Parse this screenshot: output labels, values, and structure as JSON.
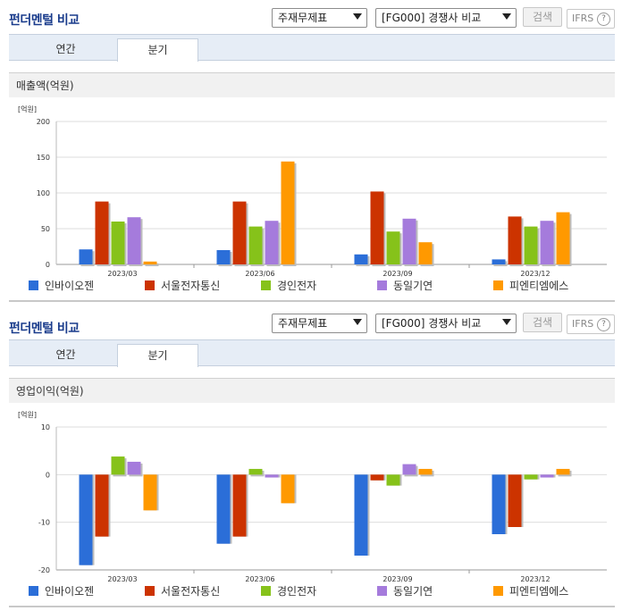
{
  "panels": [
    {
      "title": "펀더멘털 비교",
      "select1": "주재무제표",
      "select2": "[FG000] 경쟁사 비교",
      "search_label": "검색",
      "ifrs_label": "IFRS",
      "help_label": "?",
      "tabs": [
        {
          "label": "연간",
          "active": false
        },
        {
          "label": "분기",
          "active": true
        }
      ],
      "section_title": "매출액(억원)",
      "unit": "[억원]"
    },
    {
      "title": "펀더멘털 비교",
      "select1": "주재무제표",
      "select2": "[FG000] 경쟁사 비교",
      "search_label": "검색",
      "ifrs_label": "IFRS",
      "help_label": "?",
      "tabs": [
        {
          "label": "연간",
          "active": false
        },
        {
          "label": "분기",
          "active": true
        }
      ],
      "section_title": "영업이익(억원)",
      "unit": "[억원]"
    }
  ],
  "colors": {
    "title": "#1a3c8c",
    "series": [
      "#2b6ed8",
      "#cc3300",
      "#86c21a",
      "#a57bdc",
      "#ff9900"
    ]
  },
  "chart_data": [
    {
      "type": "bar",
      "categories": [
        "2023/03",
        "2023/06",
        "2023/09",
        "2023/12"
      ],
      "series": [
        {
          "name": "인바이오젠",
          "values": [
            21,
            20,
            14,
            7
          ]
        },
        {
          "name": "서울전자통신",
          "values": [
            88,
            88,
            102,
            67
          ]
        },
        {
          "name": "경인전자",
          "values": [
            60,
            53,
            46,
            53
          ]
        },
        {
          "name": "동일기연",
          "values": [
            66,
            61,
            64,
            61
          ]
        },
        {
          "name": "피엔티엠에스",
          "values": [
            4,
            144,
            31,
            73
          ]
        }
      ],
      "ylim": [
        0,
        200
      ],
      "yticks": [
        0,
        50,
        100,
        150,
        200
      ],
      "grid": true,
      "legend": "bottom"
    },
    {
      "type": "bar",
      "categories": [
        "2023/03",
        "2023/06",
        "2023/09",
        "2023/12"
      ],
      "series": [
        {
          "name": "인바이오젠",
          "values": [
            -19,
            -14.5,
            -17,
            -12.5
          ]
        },
        {
          "name": "서울전자통신",
          "values": [
            -13,
            -13,
            -1.2,
            -11
          ]
        },
        {
          "name": "경인전자",
          "values": [
            3.8,
            1.2,
            -2.3,
            -1
          ]
        },
        {
          "name": "동일기연",
          "values": [
            2.7,
            -0.6,
            2.2,
            -0.6
          ]
        },
        {
          "name": "피엔티엠에스",
          "values": [
            -7.5,
            -6,
            1.2,
            1.2
          ]
        }
      ],
      "ylim": [
        -20,
        10
      ],
      "yticks": [
        -20,
        -10,
        0,
        10
      ],
      "grid": true,
      "legend": "bottom"
    }
  ]
}
